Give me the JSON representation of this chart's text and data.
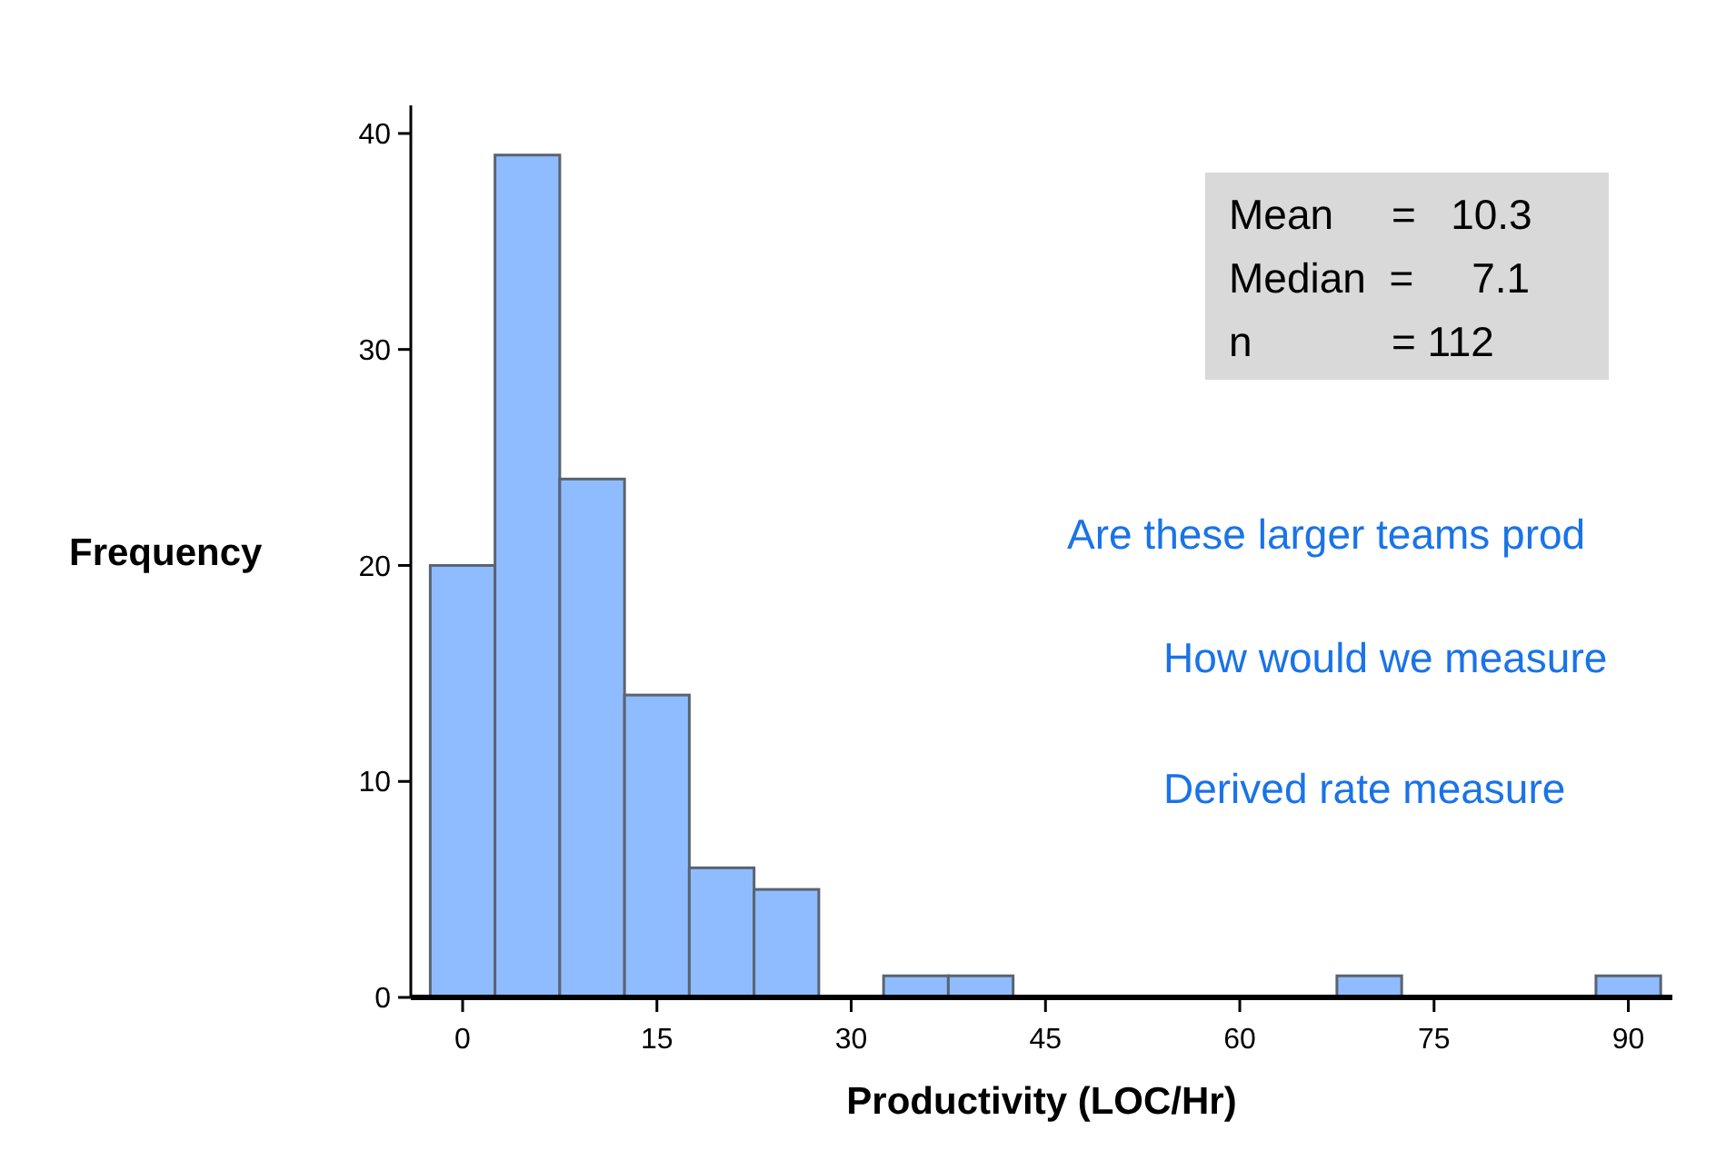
{
  "chart_data": {
    "type": "histogram",
    "xlabel": "Productivity (LOC/Hr)",
    "ylabel": "Frequency",
    "bins": [
      -2.5,
      2.5,
      7.5,
      12.5,
      17.5,
      22.5,
      27.5,
      32.5,
      37.5,
      42.5,
      47.5,
      52.5,
      57.5,
      62.5,
      67.5,
      72.5,
      77.5,
      82.5,
      87.5,
      92.5
    ],
    "values": [
      20,
      39,
      24,
      14,
      6,
      5,
      0,
      1,
      1,
      0,
      0,
      0,
      0,
      0,
      1,
      0,
      0,
      0,
      1
    ],
    "color": "#8fbcff",
    "xlim": [
      -4,
      93.4
    ],
    "ylim": [
      0,
      41.3
    ],
    "xticks": [
      0,
      15,
      30,
      45,
      60,
      75,
      90
    ],
    "yticks": [
      0,
      10,
      20,
      30,
      40
    ],
    "grid": false,
    "annotations": [
      "Mean     =   10.3",
      "Median  =     7.1",
      "n            = 112",
      "Are these larger teams prod",
      "How would we measure",
      "Derived rate measure"
    ]
  }
}
